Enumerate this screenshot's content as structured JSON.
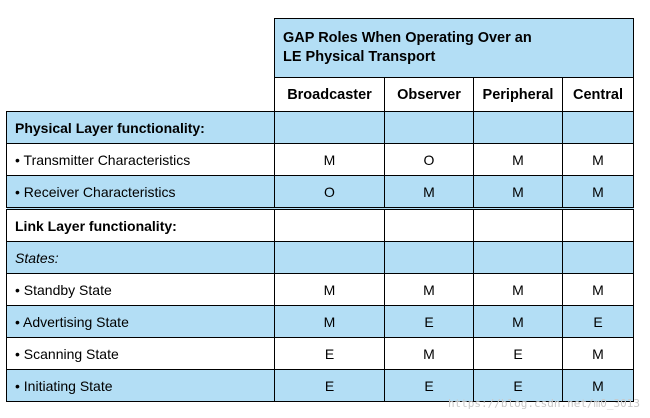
{
  "header": {
    "title_line1": "GAP Roles When Operating Over an",
    "title_line2": "LE Physical Transport",
    "roles": [
      "Broadcaster",
      "Observer",
      "Peripheral",
      "Central"
    ]
  },
  "rows": [
    {
      "label": "Physical Layer functionality:",
      "style": "section",
      "values": [
        "",
        "",
        "",
        ""
      ]
    },
    {
      "label": "• Transmitter Characteristics",
      "style": "item",
      "values": [
        "M",
        "O",
        "M",
        "M"
      ]
    },
    {
      "label": "• Receiver Characteristics",
      "style": "item",
      "values": [
        "O",
        "M",
        "M",
        "M"
      ]
    },
    {
      "label": "Link Layer functionality:",
      "style": "section",
      "values": [
        "",
        "",
        "",
        ""
      ]
    },
    {
      "label": "States:",
      "style": "subsection",
      "values": [
        "",
        "",
        "",
        ""
      ]
    },
    {
      "label": "• Standby State",
      "style": "item",
      "values": [
        "M",
        "M",
        "M",
        "M"
      ]
    },
    {
      "label": "• Advertising State",
      "style": "item",
      "values": [
        "M",
        "E",
        "M",
        "E"
      ]
    },
    {
      "label": "• Scanning State",
      "style": "item",
      "values": [
        "E",
        "M",
        "E",
        "M"
      ]
    },
    {
      "label": "• Initiating State",
      "style": "item",
      "values": [
        "E",
        "E",
        "E",
        "M"
      ]
    }
  ],
  "watermark": "https://blog.csdn.net/m0_3013",
  "colors": {
    "band": "#b3def5",
    "white": "#ffffff"
  }
}
